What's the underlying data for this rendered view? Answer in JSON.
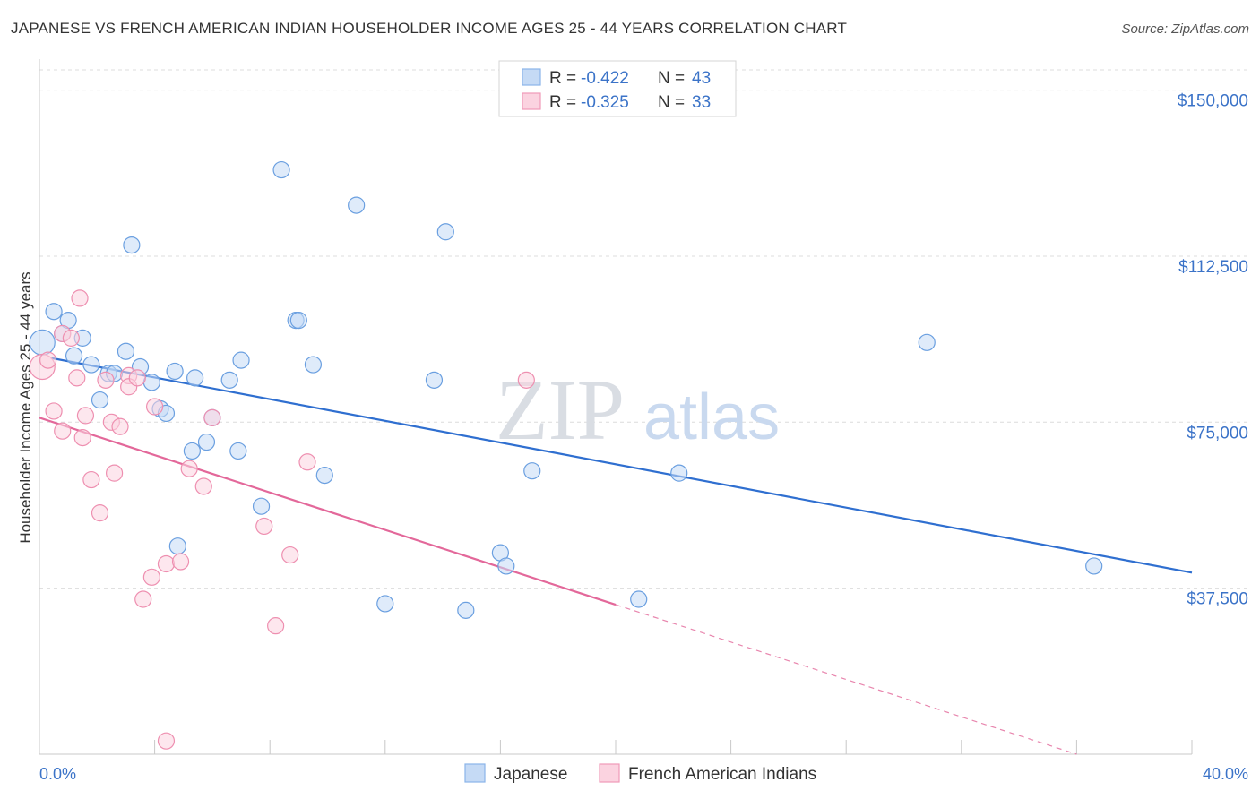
{
  "header": {
    "title": "JAPANESE VS FRENCH AMERICAN INDIAN HOUSEHOLDER INCOME AGES 25 - 44 YEARS CORRELATION CHART",
    "source": "Source: ZipAtlas.com"
  },
  "watermark": {
    "zip": "ZIP",
    "atlas": "atlas"
  },
  "legend": {
    "r_label": "R =",
    "n_label": "N =",
    "entries": [
      {
        "r": "-0.422",
        "n": "43",
        "color": "#8ab4e8",
        "fill": "#c5daf5"
      },
      {
        "r": "-0.325",
        "n": "33",
        "color": "#f09ab8",
        "fill": "#fbd3e0"
      }
    ]
  },
  "bottom_legend": [
    "Japanese",
    "French American Indians"
  ],
  "chart_data": {
    "type": "scatter",
    "title": "JAPANESE VS FRENCH AMERICAN INDIAN HOUSEHOLDER INCOME AGES 25 - 44 YEARS CORRELATION CHART",
    "xlabel": "",
    "ylabel": "Householder Income Ages 25 - 44 years",
    "xlim": [
      0,
      40
    ],
    "ylim": [
      0,
      157000
    ],
    "x_tick_labels": [
      "0.0%",
      "40.0%"
    ],
    "y_ticks": [
      37500,
      75000,
      112500,
      150000
    ],
    "y_tick_labels": [
      "$37,500",
      "$75,000",
      "$112,500",
      "$150,000"
    ],
    "grid": true,
    "series": [
      {
        "name": "Japanese",
        "color": "#6a9fe0",
        "fill": "#c5daf5",
        "trend_color": "#2f6fd0",
        "trend": {
          "x0": 0.4,
          "y0": 89500,
          "x1": 40.0,
          "y1": 41000,
          "solid_until": 40.0
        },
        "points": [
          [
            0.1,
            93000
          ],
          [
            0.5,
            100000
          ],
          [
            0.8,
            95000
          ],
          [
            1.0,
            98000
          ],
          [
            1.2,
            90000
          ],
          [
            1.5,
            94000
          ],
          [
            1.8,
            88000
          ],
          [
            2.1,
            80000
          ],
          [
            2.4,
            86000
          ],
          [
            2.6,
            86000
          ],
          [
            3.0,
            91000
          ],
          [
            3.2,
            115000
          ],
          [
            3.5,
            87500
          ],
          [
            3.9,
            84000
          ],
          [
            4.2,
            78000
          ],
          [
            4.4,
            77000
          ],
          [
            4.7,
            86500
          ],
          [
            4.8,
            47000
          ],
          [
            5.3,
            68500
          ],
          [
            5.4,
            85000
          ],
          [
            5.8,
            70500
          ],
          [
            6.0,
            76000
          ],
          [
            6.6,
            84500
          ],
          [
            6.9,
            68500
          ],
          [
            7.0,
            89000
          ],
          [
            7.7,
            56000
          ],
          [
            8.4,
            132000
          ],
          [
            8.9,
            98000
          ],
          [
            9.0,
            98000
          ],
          [
            9.5,
            88000
          ],
          [
            9.9,
            63000
          ],
          [
            11.0,
            124000
          ],
          [
            12.0,
            34000
          ],
          [
            13.7,
            84500
          ],
          [
            14.1,
            118000
          ],
          [
            14.8,
            32500
          ],
          [
            16.0,
            45500
          ],
          [
            16.2,
            42500
          ],
          [
            17.1,
            64000
          ],
          [
            20.8,
            35000
          ],
          [
            22.2,
            63500
          ],
          [
            30.8,
            93000
          ],
          [
            36.6,
            42500
          ]
        ]
      },
      {
        "name": "French American Indians",
        "color": "#ee8fb0",
        "fill": "#fbd3e0",
        "trend_color": "#e3689a",
        "trend": {
          "x0": 0.0,
          "y0": 76000,
          "x1": 36.0,
          "y1": 0,
          "solid_until": 20.0
        },
        "points": [
          [
            0.1,
            87500
          ],
          [
            0.3,
            89000
          ],
          [
            0.5,
            77500
          ],
          [
            0.8,
            95000
          ],
          [
            0.8,
            73000
          ],
          [
            1.1,
            94000
          ],
          [
            1.3,
            85000
          ],
          [
            1.4,
            103000
          ],
          [
            1.5,
            71500
          ],
          [
            1.6,
            76500
          ],
          [
            1.8,
            62000
          ],
          [
            2.1,
            54500
          ],
          [
            2.3,
            84500
          ],
          [
            2.5,
            75000
          ],
          [
            2.6,
            63500
          ],
          [
            2.8,
            74000
          ],
          [
            3.1,
            85500
          ],
          [
            3.1,
            83000
          ],
          [
            3.4,
            85000
          ],
          [
            3.6,
            35000
          ],
          [
            3.9,
            40000
          ],
          [
            4.0,
            78500
          ],
          [
            4.4,
            43000
          ],
          [
            4.4,
            3000
          ],
          [
            4.9,
            43500
          ],
          [
            5.2,
            64500
          ],
          [
            5.7,
            60500
          ],
          [
            6.0,
            76000
          ],
          [
            7.8,
            51500
          ],
          [
            8.2,
            29000
          ],
          [
            8.7,
            45000
          ],
          [
            9.3,
            66000
          ],
          [
            16.9,
            84500
          ]
        ]
      }
    ]
  }
}
